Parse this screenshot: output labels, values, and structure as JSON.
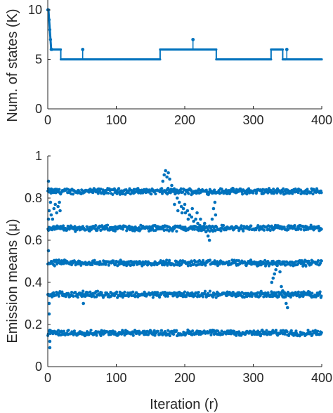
{
  "figure": {
    "series_color": "#0072BD",
    "axis_color": "#262626"
  },
  "chart_data": [
    {
      "type": "line",
      "ylabel": "Num. of states (K)",
      "xlabel": "",
      "xlim": [
        0,
        400
      ],
      "ylim": [
        0,
        11
      ],
      "xticks": [
        "0",
        "100",
        "200",
        "300",
        "400"
      ],
      "yticks": [
        "0",
        "5",
        "10"
      ],
      "x_tick_values": [
        0,
        100,
        200,
        300,
        400
      ],
      "y_tick_values": [
        0,
        5,
        10
      ],
      "grid": false,
      "step_segments": [
        {
          "x": [
            0,
            1,
            2,
            3,
            4,
            5,
            6
          ],
          "y": [
            10,
            10,
            9,
            8,
            7,
            6,
            6
          ]
        },
        {
          "x": [
            6,
            19
          ],
          "y": [
            6,
            6
          ]
        },
        {
          "x": [
            19,
            164
          ],
          "y": [
            5,
            5
          ]
        },
        {
          "x": [
            164,
            246
          ],
          "y": [
            6,
            6
          ]
        },
        {
          "x": [
            246,
            326
          ],
          "y": [
            5,
            5
          ]
        },
        {
          "x": [
            326,
            343
          ],
          "y": [
            6,
            6
          ]
        },
        {
          "x": [
            343,
            347
          ],
          "y": [
            5,
            5
          ]
        },
        {
          "x": [
            347,
            400
          ],
          "y": [
            5,
            5
          ]
        }
      ],
      "spikes": [
        {
          "x": 51,
          "base": 5,
          "peak": 6
        },
        {
          "x": 212,
          "base": 6,
          "peak": 7
        },
        {
          "x": 349,
          "base": 5,
          "peak": 6
        }
      ]
    },
    {
      "type": "scatter",
      "ylabel": "Emission means (μ)",
      "xlabel": "Iteration (r)",
      "xlim": [
        0,
        400
      ],
      "ylim": [
        0,
        1
      ],
      "xticks": [
        "0",
        "100",
        "200",
        "300",
        "400"
      ],
      "yticks": [
        "0",
        "0.2",
        "0.4",
        "0.6",
        "0.8",
        "1"
      ],
      "x_tick_values": [
        0,
        100,
        200,
        300,
        400
      ],
      "y_tick_values": [
        0,
        0.2,
        0.4,
        0.6,
        0.8,
        1
      ],
      "grid": false,
      "bands": [
        {
          "level": 0.832,
          "x_from": 0,
          "x_to": 400
        },
        {
          "level": 0.657,
          "x_from": 0,
          "x_to": 400
        },
        {
          "level": 0.492,
          "x_from": 0,
          "x_to": 400
        },
        {
          "level": 0.343,
          "x_from": 0,
          "x_to": 400
        },
        {
          "level": 0.16,
          "x_from": 0,
          "x_to": 400
        }
      ],
      "transient_points": [
        {
          "x": 1,
          "y": 0.88
        },
        {
          "x": 1,
          "y": 0.7
        },
        {
          "x": 1,
          "y": 0.55
        },
        {
          "x": 2,
          "y": 0.3
        },
        {
          "x": 2,
          "y": 0.25
        },
        {
          "x": 3,
          "y": 0.09
        },
        {
          "x": 3,
          "y": 0.12
        },
        {
          "x": 2,
          "y": 0.74
        },
        {
          "x": 4,
          "y": 0.78
        },
        {
          "x": 5,
          "y": 0.72
        },
        {
          "x": 7,
          "y": 0.7
        },
        {
          "x": 9,
          "y": 0.75
        },
        {
          "x": 11,
          "y": 0.77
        },
        {
          "x": 13,
          "y": 0.73
        },
        {
          "x": 15,
          "y": 0.76
        },
        {
          "x": 17,
          "y": 0.78
        },
        {
          "x": 18,
          "y": 0.74
        },
        {
          "x": 52,
          "y": 0.3
        },
        {
          "x": 168,
          "y": 0.88
        },
        {
          "x": 170,
          "y": 0.91
        },
        {
          "x": 172,
          "y": 0.93
        },
        {
          "x": 174,
          "y": 0.9
        },
        {
          "x": 176,
          "y": 0.92
        },
        {
          "x": 178,
          "y": 0.89
        },
        {
          "x": 181,
          "y": 0.86
        },
        {
          "x": 183,
          "y": 0.84
        },
        {
          "x": 186,
          "y": 0.82
        },
        {
          "x": 189,
          "y": 0.8
        },
        {
          "x": 192,
          "y": 0.78
        },
        {
          "x": 195,
          "y": 0.76
        },
        {
          "x": 198,
          "y": 0.75
        },
        {
          "x": 201,
          "y": 0.73
        },
        {
          "x": 204,
          "y": 0.74
        },
        {
          "x": 207,
          "y": 0.72
        },
        {
          "x": 210,
          "y": 0.71
        },
        {
          "x": 213,
          "y": 0.69
        },
        {
          "x": 216,
          "y": 0.7
        },
        {
          "x": 219,
          "y": 0.68
        },
        {
          "x": 222,
          "y": 0.67
        },
        {
          "x": 225,
          "y": 0.66
        },
        {
          "x": 228,
          "y": 0.65
        },
        {
          "x": 231,
          "y": 0.64
        },
        {
          "x": 234,
          "y": 0.62
        },
        {
          "x": 236,
          "y": 0.6
        },
        {
          "x": 240,
          "y": 0.7
        },
        {
          "x": 242,
          "y": 0.75
        },
        {
          "x": 244,
          "y": 0.78
        },
        {
          "x": 245,
          "y": 0.72
        },
        {
          "x": 185,
          "y": 0.77
        },
        {
          "x": 190,
          "y": 0.74
        },
        {
          "x": 196,
          "y": 0.73
        },
        {
          "x": 200,
          "y": 0.77
        },
        {
          "x": 205,
          "y": 0.7
        },
        {
          "x": 211,
          "y": 0.75
        },
        {
          "x": 218,
          "y": 0.73
        },
        {
          "x": 223,
          "y": 0.7
        },
        {
          "x": 229,
          "y": 0.68
        },
        {
          "x": 327,
          "y": 0.4
        },
        {
          "x": 329,
          "y": 0.42
        },
        {
          "x": 331,
          "y": 0.44
        },
        {
          "x": 333,
          "y": 0.46
        },
        {
          "x": 335,
          "y": 0.48
        },
        {
          "x": 337,
          "y": 0.5
        },
        {
          "x": 339,
          "y": 0.45
        },
        {
          "x": 341,
          "y": 0.38
        },
        {
          "x": 343,
          "y": 0.36
        },
        {
          "x": 345,
          "y": 0.33
        },
        {
          "x": 348,
          "y": 0.3
        },
        {
          "x": 350,
          "y": 0.28
        }
      ]
    }
  ]
}
